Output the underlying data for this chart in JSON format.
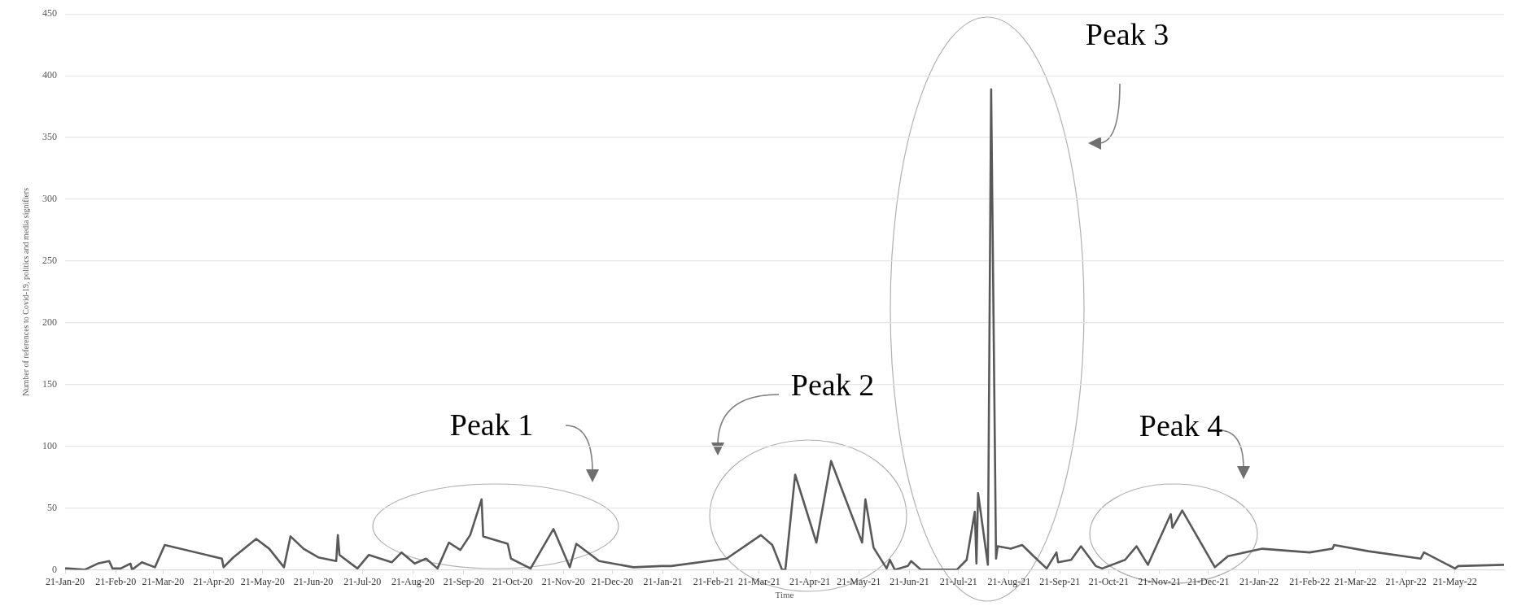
{
  "chart_data": {
    "type": "line",
    "xlabel": "Time",
    "ylabel": "Number of references to Covid-19, politics and media signifiers",
    "x": [
      "2020-01-21",
      "2020-01-23",
      "2020-02-02",
      "2020-02-10",
      "2020-02-17",
      "2020-02-19",
      "2020-02-24",
      "2020-03-01",
      "2020-03-02",
      "2020-03-08",
      "2020-03-16",
      "2020-03-22",
      "2020-04-26",
      "2020-04-27",
      "2020-05-03",
      "2020-05-17",
      "2020-05-25",
      "2020-06-03",
      "2020-06-07",
      "2020-06-15",
      "2020-06-24",
      "2020-07-05",
      "2020-07-06",
      "2020-07-07",
      "2020-07-18",
      "2020-07-25",
      "2020-08-08",
      "2020-08-14",
      "2020-08-22",
      "2020-08-29",
      "2020-09-05",
      "2020-09-12",
      "2020-09-19",
      "2020-09-25",
      "2020-10-02",
      "2020-10-03",
      "2020-10-18",
      "2020-10-20",
      "2020-11-01",
      "2020-11-15",
      "2020-11-25",
      "2020-11-29",
      "2020-12-13",
      "2021-01-03",
      "2021-01-20",
      "2021-01-26",
      "2021-03-01",
      "2021-03-22",
      "2021-03-29",
      "2021-04-04",
      "2021-04-06",
      "2021-04-12",
      "2021-04-25",
      "2021-05-04",
      "2021-05-23",
      "2021-05-25",
      "2021-05-30",
      "2021-06-07",
      "2021-06-09",
      "2021-06-12",
      "2021-06-20",
      "2021-06-22",
      "2021-06-28",
      "2021-07-20",
      "2021-07-26",
      "2021-07-31",
      "2021-08-01",
      "2021-08-02",
      "2021-08-08",
      "2021-08-10",
      "2021-08-13",
      "2021-08-14",
      "2021-08-22",
      "2021-08-29",
      "2021-09-05",
      "2021-09-13",
      "2021-09-19",
      "2021-09-20",
      "2021-09-28",
      "2021-10-04",
      "2021-10-13",
      "2021-10-17",
      "2021-10-31",
      "2021-11-07",
      "2021-11-14",
      "2021-11-28",
      "2021-11-29",
      "2021-12-05",
      "2021-12-25",
      "2022-01-02",
      "2022-01-23",
      "2022-02-21",
      "2022-03-07",
      "2022-03-08",
      "2022-03-29",
      "2022-04-30",
      "2022-05-02",
      "2022-05-21",
      "2022-05-23",
      "2022-06-20"
    ],
    "series": [
      {
        "color": "#595959",
        "values": [
          1,
          1,
          0,
          5,
          7,
          1,
          1,
          5,
          0,
          6,
          2,
          20,
          9,
          2,
          10,
          25,
          17,
          2,
          27,
          17,
          10,
          7,
          28,
          12,
          1,
          12,
          6,
          14,
          5,
          9,
          1,
          22,
          16,
          28,
          57,
          27,
          21,
          9,
          1,
          33,
          2,
          21,
          7,
          2,
          3,
          3,
          9,
          28,
          20,
          0,
          0,
          77,
          22,
          88,
          22,
          57,
          18,
          1,
          8,
          0,
          3,
          7,
          0,
          0,
          8,
          47,
          5,
          62,
          4,
          389,
          9,
          19,
          17,
          20,
          11,
          1,
          14,
          6,
          8,
          19,
          3,
          1,
          8,
          19,
          4,
          45,
          34,
          48,
          2,
          11,
          17,
          14,
          17,
          20,
          15,
          9,
          14,
          1,
          3,
          4
        ]
      }
    ],
    "xlim": [
      "2020-01-21",
      "2022-06-20"
    ],
    "xticks": [
      {
        "value": "2020-01-21",
        "label": "21-Jan-20"
      },
      {
        "value": "2020-02-21",
        "label": "21-Feb-20"
      },
      {
        "value": "2020-03-21",
        "label": "21-Mar-20"
      },
      {
        "value": "2020-04-21",
        "label": "21-Apr-20"
      },
      {
        "value": "2020-05-21",
        "label": "21-May-20"
      },
      {
        "value": "2020-06-21",
        "label": "21-Jun-20"
      },
      {
        "value": "2020-07-21",
        "label": "21-Jul-20"
      },
      {
        "value": "2020-08-21",
        "label": "21-Aug-20"
      },
      {
        "value": "2020-09-21",
        "label": "21-Sep-20"
      },
      {
        "value": "2020-10-21",
        "label": "21-Oct-20"
      },
      {
        "value": "2020-11-21",
        "label": "21-Nov-20"
      },
      {
        "value": "2020-12-21",
        "label": "21-Dec-20"
      },
      {
        "value": "2021-01-21",
        "label": "21-Jan-21"
      },
      {
        "value": "2021-02-21",
        "label": "21-Feb-21"
      },
      {
        "value": "2021-03-21",
        "label": "21-Mar-21"
      },
      {
        "value": "2021-04-21",
        "label": "21-Apr-21"
      },
      {
        "value": "2021-05-21",
        "label": "21-May-21"
      },
      {
        "value": "2021-06-21",
        "label": "21-Jun-21"
      },
      {
        "value": "2021-07-21",
        "label": "21-Jul-21"
      },
      {
        "value": "2021-08-21",
        "label": "21-Aug-21"
      },
      {
        "value": "2021-09-21",
        "label": "21-Sep-21"
      },
      {
        "value": "2021-10-21",
        "label": "21-Oct-21"
      },
      {
        "value": "2021-11-21",
        "label": "21-Nov-21"
      },
      {
        "value": "2021-12-21",
        "label": "21-Dec-21"
      },
      {
        "value": "2022-01-21",
        "label": "21-Jan-22"
      },
      {
        "value": "2022-02-21",
        "label": "21-Feb-22"
      },
      {
        "value": "2022-03-21",
        "label": "21-Mar-22"
      },
      {
        "value": "2022-04-21",
        "label": "21-Apr-22"
      },
      {
        "value": "2022-05-21",
        "label": "21-May-22"
      }
    ],
    "ylim": [
      0,
      450
    ],
    "yticks": [
      0,
      50,
      100,
      150,
      200,
      250,
      300,
      350,
      400,
      450
    ],
    "grid": "y",
    "legend": false,
    "marker": "none",
    "line_style": "solid",
    "annotations": [
      "Peak 1",
      "Peak 2",
      "Peak 3",
      "Peak 4"
    ]
  }
}
